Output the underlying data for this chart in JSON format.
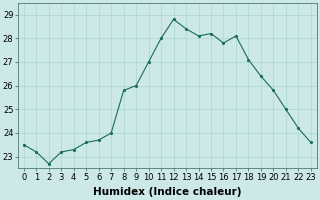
{
  "x": [
    0,
    1,
    2,
    3,
    4,
    5,
    6,
    7,
    8,
    9,
    10,
    11,
    12,
    13,
    14,
    15,
    16,
    17,
    18,
    19,
    20,
    21,
    22,
    23
  ],
  "y": [
    23.5,
    23.2,
    22.7,
    23.2,
    23.3,
    23.6,
    23.7,
    24.0,
    25.8,
    26.0,
    27.0,
    28.0,
    28.8,
    28.4,
    28.1,
    28.2,
    27.8,
    28.1,
    27.1,
    26.4,
    25.8,
    25.0,
    24.2,
    23.6
  ],
  "line_color": "#1a6b5a",
  "marker_color": "#1a6b5a",
  "bg_color": "#cce9e8",
  "grid_color": "#a8d5d3",
  "xlabel": "Humidex (Indice chaleur)",
  "xlabel_fontsize": 7.5,
  "tick_fontsize": 6,
  "ylim": [
    22.5,
    29.5
  ],
  "xlim": [
    -0.5,
    23.5
  ],
  "yticks": [
    23,
    24,
    25,
    26,
    27,
    28,
    29
  ],
  "xticks": [
    0,
    1,
    2,
    3,
    4,
    5,
    6,
    7,
    8,
    9,
    10,
    11,
    12,
    13,
    14,
    15,
    16,
    17,
    18,
    19,
    20,
    21,
    22,
    23
  ]
}
